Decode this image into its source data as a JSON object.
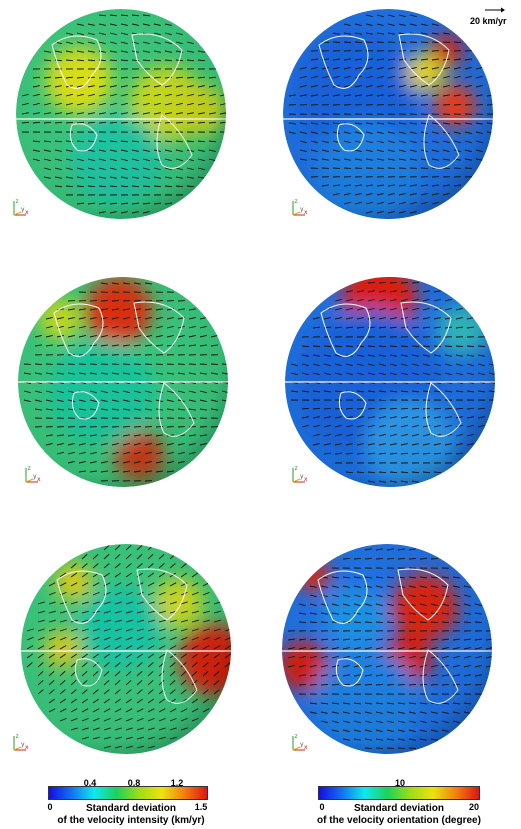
{
  "scale": {
    "label": "20 km/yr"
  },
  "globes": [
    {
      "id": "intensity-view-1",
      "blobs": [
        [
          "#d7dd19",
          0.3,
          0.34,
          0.16
        ],
        [
          "#c3d81c",
          0.72,
          0.45,
          0.18
        ],
        [
          "#1ec4a0",
          0.48,
          0.72,
          0.22
        ],
        [
          "#c7d31d",
          0.88,
          0.48,
          0.12
        ]
      ]
    },
    {
      "id": "orientation-view-1",
      "blobs": [
        [
          "#d81e10",
          0.78,
          0.2,
          0.08
        ],
        [
          "#ef3a12",
          0.82,
          0.46,
          0.1
        ],
        [
          "#1560d8",
          0.35,
          0.4,
          0.3
        ],
        [
          "#1f7fe0",
          0.4,
          0.78,
          0.25
        ],
        [
          "#e2d31b",
          0.68,
          0.3,
          0.09
        ]
      ]
    },
    {
      "id": "intensity-view-2",
      "blobs": [
        [
          "#d82d0f",
          0.48,
          0.16,
          0.16
        ],
        [
          "#c43a12",
          0.58,
          0.85,
          0.12
        ],
        [
          "#19c39a",
          0.4,
          0.55,
          0.25
        ],
        [
          "#c1d81d",
          0.2,
          0.2,
          0.1
        ]
      ]
    },
    {
      "id": "orientation-view-2",
      "blobs": [
        [
          "#dd1e0d",
          0.45,
          0.1,
          0.18
        ],
        [
          "#1661d8",
          0.4,
          0.5,
          0.35
        ],
        [
          "#2a95e6",
          0.6,
          0.8,
          0.22
        ],
        [
          "#2fb7bd",
          0.85,
          0.25,
          0.12
        ]
      ]
    },
    {
      "id": "intensity-view-3",
      "blobs": [
        [
          "#d5200f",
          0.92,
          0.55,
          0.17
        ],
        [
          "#c9d71d",
          0.75,
          0.28,
          0.12
        ],
        [
          "#14c2a1",
          0.48,
          0.4,
          0.2
        ],
        [
          "#d9cc19",
          0.25,
          0.18,
          0.09
        ],
        [
          "#d2c81e",
          0.2,
          0.5,
          0.09
        ]
      ]
    },
    {
      "id": "orientation-view-3",
      "blobs": [
        [
          "#d9200e",
          0.68,
          0.3,
          0.16
        ],
        [
          "#cf1d0c",
          0.6,
          0.55,
          0.12
        ],
        [
          "#d01e0e",
          0.1,
          0.58,
          0.12
        ],
        [
          "#d7250f",
          0.15,
          0.15,
          0.08
        ],
        [
          "#1f7fe0",
          0.4,
          0.75,
          0.25
        ],
        [
          "#1f8fe0",
          0.35,
          0.35,
          0.15
        ]
      ]
    }
  ],
  "colorbars": [
    {
      "id": "intensity",
      "gradient": [
        "#1010e0",
        "#1670f0",
        "#10e8f0",
        "#20d058",
        "#9ddd18",
        "#f0e010",
        "#f08010",
        "#e01410"
      ],
      "ticks_above": [
        "0.4",
        "0.8",
        "1.2"
      ],
      "ticks_above_values": [
        0.4,
        0.8,
        1.2
      ],
      "tick_min": "0",
      "tick_max": "1.5",
      "range": [
        0,
        1.5
      ],
      "title_line1": "Standard deviation",
      "title_line2": "of the velocity intensity (km/yr)"
    },
    {
      "id": "orientation",
      "gradient": [
        "#1010e0",
        "#1670f0",
        "#10e8f0",
        "#20d058",
        "#9ddd18",
        "#f0e010",
        "#f08010",
        "#e01410"
      ],
      "ticks_above": [
        "10"
      ],
      "ticks_above_values": [
        10
      ],
      "tick_min": "0",
      "tick_max": "20",
      "range": [
        0,
        20
      ],
      "title_line1": "Standard deviation",
      "title_line2": "of the velocity orientation (degree)"
    }
  ],
  "axes_labels": {
    "z": "z",
    "x": "x",
    "y": "y"
  }
}
